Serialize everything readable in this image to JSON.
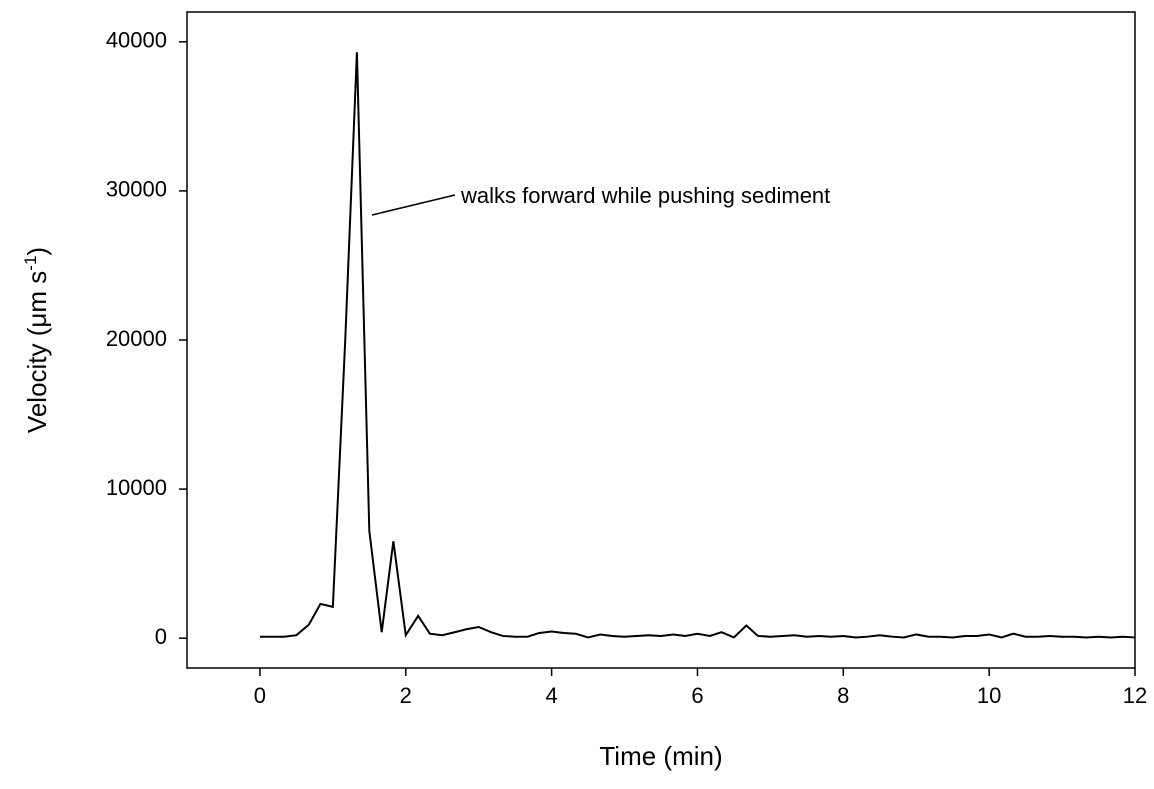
{
  "chart_data": {
    "type": "line",
    "x_label": "Time (min)",
    "y_label": "Velocity (μm s",
    "y_label_superscript": "-1",
    "y_label_end": ")",
    "annotation": "walks forward while pushing sediment",
    "xlim": [
      -1,
      12
    ],
    "xticks": [
      0,
      2,
      4,
      6,
      8,
      10,
      12
    ],
    "ylim": [
      -2000,
      42000
    ],
    "yticks": [
      0,
      10000,
      20000,
      30000,
      40000
    ],
    "grid": false,
    "x": [
      0,
      0.17,
      0.33,
      0.5,
      0.67,
      0.83,
      1,
      1.17,
      1.33,
      1.5,
      1.67,
      1.83,
      2,
      2.17,
      2.33,
      2.5,
      2.67,
      2.83,
      3,
      3.17,
      3.33,
      3.5,
      3.67,
      3.83,
      4,
      4.17,
      4.33,
      4.5,
      4.67,
      4.83,
      5,
      5.17,
      5.33,
      5.5,
      5.67,
      5.83,
      6,
      6.17,
      6.33,
      6.5,
      6.67,
      6.83,
      7,
      7.17,
      7.33,
      7.5,
      7.67,
      7.83,
      8,
      8.17,
      8.33,
      8.5,
      8.67,
      8.83,
      9,
      9.17,
      9.33,
      9.5,
      9.67,
      9.83,
      10,
      10.17,
      10.33,
      10.5,
      10.67,
      10.83,
      11,
      11.17,
      11.33,
      11.5,
      11.67,
      11.83,
      12
    ],
    "series": [
      {
        "color": "#000000",
        "values": [
          100,
          100,
          100,
          200,
          900,
          2300,
          2100,
          20000,
          39300,
          7200,
          400,
          6500,
          200,
          1500,
          300,
          200,
          400,
          600,
          750,
          400,
          150,
          100,
          100,
          350,
          450,
          350,
          300,
          50,
          250,
          150,
          100,
          150,
          200,
          150,
          250,
          150,
          300,
          150,
          400,
          50,
          850,
          150,
          100,
          150,
          200,
          100,
          150,
          100,
          150,
          50,
          100,
          200,
          100,
          50,
          250,
          100,
          100,
          50,
          150,
          150,
          250,
          50,
          300,
          100,
          100,
          150,
          100,
          100,
          50,
          100,
          50,
          100,
          50
        ]
      }
    ]
  }
}
